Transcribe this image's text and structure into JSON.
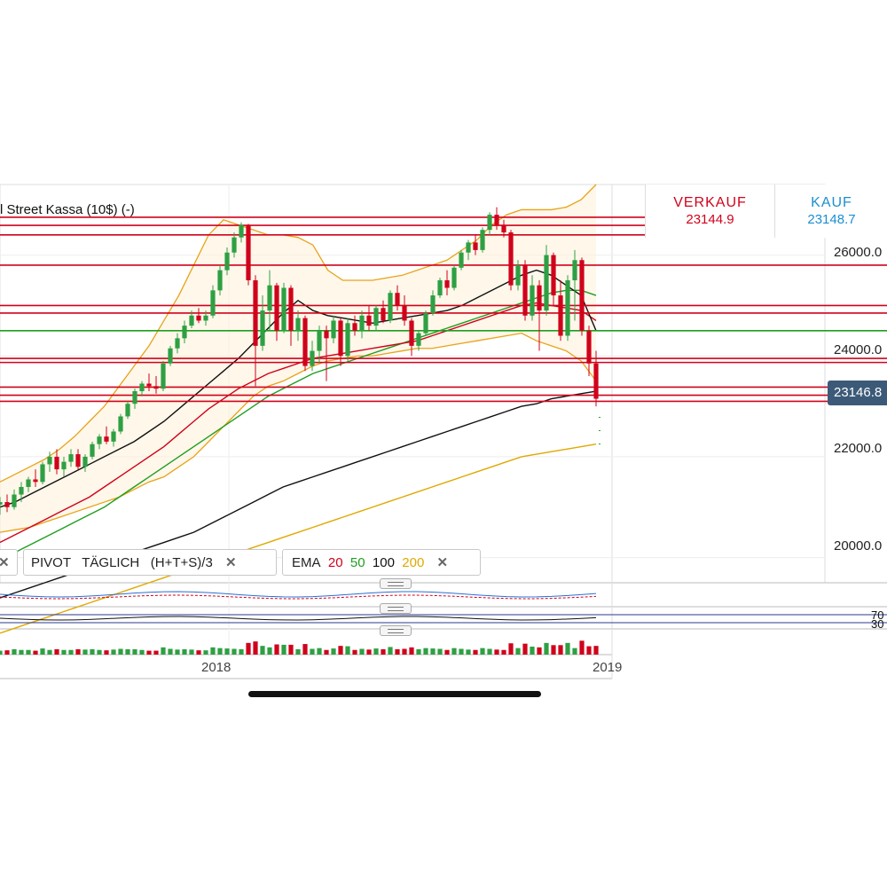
{
  "header": {
    "instrument": "l Street Kassa (10$) (-)",
    "sell_label": "VERKAUF",
    "sell_price": "23144.9",
    "buy_label": "KAUF",
    "buy_price": "23148.7"
  },
  "indicators": {
    "pivot_label": "PIVOT",
    "pivot_period": "TÄGLICH",
    "pivot_formula": "(H+T+S)/3",
    "ema_label": "EMA",
    "ema_periods": [
      "20",
      "50",
      "100",
      "200"
    ],
    "close_glyph": "✕"
  },
  "oscillator_labels": [
    "70",
    "30"
  ],
  "colors": {
    "bull": "#2ea043",
    "bear": "#d0021b",
    "ema20": "#d0021b",
    "ema50": "#1f9e1f",
    "ema100": "#111111",
    "ema200": "#e0a800",
    "bollinger": "#e8a317",
    "price_tag": "#3c5a78"
  },
  "chart_data": {
    "type": "candlestick",
    "x_ticks": [
      "2018",
      "2019"
    ],
    "y_ticks": [
      "26000.0",
      "24000.0",
      "22000.0",
      "20000.0"
    ],
    "ylim": [
      19500,
      27400
    ],
    "current_price": "23146.8",
    "horizontal_levels": [
      26750,
      26590,
      26400,
      25800,
      25000,
      24850,
      24500,
      23950,
      23870,
      23380,
      23220,
      23100
    ],
    "candles": [
      {
        "o": 21050,
        "h": 21200,
        "l": 20850,
        "c": 21100
      },
      {
        "o": 21100,
        "h": 21250,
        "l": 20900,
        "c": 21000
      },
      {
        "o": 21000,
        "h": 21350,
        "l": 20950,
        "c": 21250
      },
      {
        "o": 21250,
        "h": 21500,
        "l": 21100,
        "c": 21400
      },
      {
        "o": 21400,
        "h": 21600,
        "l": 21300,
        "c": 21550
      },
      {
        "o": 21550,
        "h": 21750,
        "l": 21400,
        "c": 21500
      },
      {
        "o": 21500,
        "h": 21900,
        "l": 21450,
        "c": 21850
      },
      {
        "o": 21850,
        "h": 22100,
        "l": 21700,
        "c": 22000
      },
      {
        "o": 22000,
        "h": 22150,
        "l": 21650,
        "c": 21750
      },
      {
        "o": 21750,
        "h": 22000,
        "l": 21600,
        "c": 21900
      },
      {
        "o": 21900,
        "h": 22150,
        "l": 21800,
        "c": 22050
      },
      {
        "o": 22050,
        "h": 22150,
        "l": 21750,
        "c": 21800
      },
      {
        "o": 21800,
        "h": 22050,
        "l": 21700,
        "c": 22000
      },
      {
        "o": 22000,
        "h": 22300,
        "l": 21950,
        "c": 22250
      },
      {
        "o": 22250,
        "h": 22450,
        "l": 22150,
        "c": 22400
      },
      {
        "o": 22400,
        "h": 22600,
        "l": 22250,
        "c": 22300
      },
      {
        "o": 22300,
        "h": 22550,
        "l": 22200,
        "c": 22500
      },
      {
        "o": 22500,
        "h": 22850,
        "l": 22450,
        "c": 22800
      },
      {
        "o": 22800,
        "h": 23100,
        "l": 22750,
        "c": 23050
      },
      {
        "o": 23050,
        "h": 23350,
        "l": 22950,
        "c": 23300
      },
      {
        "o": 23300,
        "h": 23500,
        "l": 23200,
        "c": 23450
      },
      {
        "o": 23450,
        "h": 23650,
        "l": 23300,
        "c": 23400
      },
      {
        "o": 23400,
        "h": 23600,
        "l": 23250,
        "c": 23350
      },
      {
        "o": 23350,
        "h": 23900,
        "l": 23300,
        "c": 23850
      },
      {
        "o": 23850,
        "h": 24200,
        "l": 23800,
        "c": 24150
      },
      {
        "o": 24150,
        "h": 24450,
        "l": 24050,
        "c": 24350
      },
      {
        "o": 24350,
        "h": 24700,
        "l": 24250,
        "c": 24600
      },
      {
        "o": 24600,
        "h": 24900,
        "l": 24550,
        "c": 24800
      },
      {
        "o": 24800,
        "h": 24950,
        "l": 24650,
        "c": 24700
      },
      {
        "o": 24700,
        "h": 24900,
        "l": 24600,
        "c": 24800
      },
      {
        "o": 24800,
        "h": 25400,
        "l": 24750,
        "c": 25300
      },
      {
        "o": 25300,
        "h": 25800,
        "l": 25200,
        "c": 25700
      },
      {
        "o": 25700,
        "h": 26150,
        "l": 25600,
        "c": 26050
      },
      {
        "o": 26050,
        "h": 26450,
        "l": 25950,
        "c": 26350
      },
      {
        "o": 26350,
        "h": 26650,
        "l": 26250,
        "c": 26600
      },
      {
        "o": 26600,
        "h": 26620,
        "l": 25400,
        "c": 25500
      },
      {
        "o": 25500,
        "h": 25600,
        "l": 23400,
        "c": 24200
      },
      {
        "o": 24200,
        "h": 25200,
        "l": 24100,
        "c": 24900
      },
      {
        "o": 24900,
        "h": 25700,
        "l": 24500,
        "c": 25400
      },
      {
        "o": 25400,
        "h": 25450,
        "l": 24300,
        "c": 24500
      },
      {
        "o": 24500,
        "h": 25450,
        "l": 24450,
        "c": 25350
      },
      {
        "o": 25350,
        "h": 25400,
        "l": 24200,
        "c": 24500
      },
      {
        "o": 24500,
        "h": 24900,
        "l": 24300,
        "c": 24750
      },
      {
        "o": 24750,
        "h": 24800,
        "l": 23700,
        "c": 23800
      },
      {
        "o": 23800,
        "h": 24300,
        "l": 23700,
        "c": 24100
      },
      {
        "o": 24100,
        "h": 24600,
        "l": 23850,
        "c": 24500
      },
      {
        "o": 24500,
        "h": 24600,
        "l": 23500,
        "c": 24350
      },
      {
        "o": 24350,
        "h": 24800,
        "l": 24250,
        "c": 24700
      },
      {
        "o": 24700,
        "h": 24750,
        "l": 23800,
        "c": 24000
      },
      {
        "o": 24000,
        "h": 24750,
        "l": 23900,
        "c": 24650
      },
      {
        "o": 24650,
        "h": 24800,
        "l": 24400,
        "c": 24500
      },
      {
        "o": 24500,
        "h": 24900,
        "l": 24350,
        "c": 24800
      },
      {
        "o": 24800,
        "h": 25000,
        "l": 24500,
        "c": 24600
      },
      {
        "o": 24600,
        "h": 25000,
        "l": 24500,
        "c": 24950
      },
      {
        "o": 24950,
        "h": 25100,
        "l": 24650,
        "c": 24700
      },
      {
        "o": 24700,
        "h": 25300,
        "l": 24650,
        "c": 25250
      },
      {
        "o": 25250,
        "h": 25400,
        "l": 24900,
        "c": 25000
      },
      {
        "o": 25000,
        "h": 25200,
        "l": 24600,
        "c": 24700
      },
      {
        "o": 24700,
        "h": 24750,
        "l": 24000,
        "c": 24200
      },
      {
        "o": 24200,
        "h": 24500,
        "l": 24100,
        "c": 24450
      },
      {
        "o": 24450,
        "h": 24900,
        "l": 24400,
        "c": 24850
      },
      {
        "o": 24850,
        "h": 25300,
        "l": 24800,
        "c": 25200
      },
      {
        "o": 25200,
        "h": 25550,
        "l": 25150,
        "c": 25500
      },
      {
        "o": 25500,
        "h": 25700,
        "l": 25200,
        "c": 25350
      },
      {
        "o": 25350,
        "h": 25800,
        "l": 25300,
        "c": 25750
      },
      {
        "o": 25750,
        "h": 26100,
        "l": 25700,
        "c": 26050
      },
      {
        "o": 26050,
        "h": 26300,
        "l": 25900,
        "c": 26250
      },
      {
        "o": 26250,
        "h": 26400,
        "l": 26000,
        "c": 26100
      },
      {
        "o": 26100,
        "h": 26550,
        "l": 26050,
        "c": 26500
      },
      {
        "o": 26500,
        "h": 26850,
        "l": 26400,
        "c": 26800
      },
      {
        "o": 26800,
        "h": 26950,
        "l": 26500,
        "c": 26600
      },
      {
        "o": 26600,
        "h": 26700,
        "l": 26350,
        "c": 26450
      },
      {
        "o": 26450,
        "h": 26500,
        "l": 25300,
        "c": 25400
      },
      {
        "o": 25400,
        "h": 25900,
        "l": 25300,
        "c": 25800
      },
      {
        "o": 25800,
        "h": 25900,
        "l": 24700,
        "c": 24800
      },
      {
        "o": 24800,
        "h": 25600,
        "l": 24700,
        "c": 25400
      },
      {
        "o": 25400,
        "h": 25500,
        "l": 24100,
        "c": 24900
      },
      {
        "o": 24900,
        "h": 26200,
        "l": 24800,
        "c": 26000
      },
      {
        "o": 26000,
        "h": 26050,
        "l": 25000,
        "c": 25200
      },
      {
        "o": 25200,
        "h": 25500,
        "l": 24300,
        "c": 24400
      },
      {
        "o": 24400,
        "h": 25600,
        "l": 24300,
        "c": 25500
      },
      {
        "o": 25500,
        "h": 26100,
        "l": 24700,
        "c": 25900
      },
      {
        "o": 25900,
        "h": 25950,
        "l": 24400,
        "c": 24500
      },
      {
        "o": 24500,
        "h": 24600,
        "l": 23600,
        "c": 23850
      },
      {
        "o": 23850,
        "h": 24100,
        "l": 23000,
        "c": 23150
      }
    ],
    "ema20": [
      21000,
      21100,
      21250,
      21400,
      21550,
      21700,
      21850,
      22000,
      22150,
      22300,
      22500,
      22700,
      22950,
      23200,
      23450,
      23700,
      23950,
      24250,
      24550,
      24850,
      25100,
      24900,
      24800,
      24750,
      24700,
      24650,
      24700,
      24750,
      24800,
      24850,
      24900,
      25000,
      25150,
      25300,
      25450,
      25600,
      25700,
      25600,
      25400,
      25200,
      24500
    ],
    "ema50": [
      20300,
      20450,
      20600,
      20750,
      20900,
      21050,
      21200,
      21400,
      21600,
      21800,
      22000,
      22200,
      22450,
      22700,
      22950,
      23150,
      23350,
      23500,
      23650,
      23750,
      23850,
      23950,
      24000,
      24050,
      24100,
      24150,
      24200,
      24250,
      24300,
      24400,
      24500,
      24600,
      24700,
      24800,
      24900,
      25000,
      25050,
      25000,
      24950,
      24900,
      24700
    ],
    "ema100": [
      20000,
      20100,
      20250,
      20400,
      20550,
      20700,
      20850,
      21000,
      21200,
      21400,
      21600,
      21800,
      22000,
      22200,
      22400,
      22600,
      22800,
      23000,
      23200,
      23350,
      23500,
      23650,
      23750,
      23850,
      23950,
      24050,
      24150,
      24250,
      24350,
      24450,
      24550,
      24650,
      24750,
      24850,
      24950,
      25050,
      25150,
      25250,
      25300,
      25300,
      25200
    ],
    "ema200": [
      19200,
      19300,
      19400,
      19500,
      19600,
      19700,
      19800,
      19900,
      20000,
      20100,
      20200,
      20300,
      20400,
      20500,
      20650,
      20800,
      20950,
      21100,
      21250,
      21400,
      21500,
      21600,
      21700,
      21800,
      21900,
      22000,
      22100,
      22200,
      22300,
      22400,
      22500,
      22600,
      22700,
      22800,
      22900,
      23000,
      23050,
      23150,
      23200,
      23250,
      23300
    ],
    "ema300": [
      18500,
      18600,
      18700,
      18800,
      18900,
      19000,
      19100,
      19200,
      19300,
      19400,
      19500,
      19600,
      19700,
      19800,
      19900,
      20000,
      20100,
      20200,
      20300,
      20400,
      20500,
      20600,
      20700,
      20800,
      20900,
      21000,
      21100,
      21200,
      21300,
      21400,
      21500,
      21600,
      21700,
      21800,
      21900,
      22000,
      22050,
      22100,
      22150,
      22200,
      22250
    ],
    "boll_upper": [
      21500,
      21650,
      21800,
      21950,
      22150,
      22400,
      22700,
      23000,
      23400,
      23800,
      24200,
      24700,
      25200,
      25800,
      26400,
      26700,
      26600,
      26500,
      26400,
      26400,
      26350,
      26200,
      25700,
      25500,
      25500,
      25500,
      25550,
      25600,
      25700,
      25800,
      25900,
      26100,
      26300,
      26600,
      26800,
      26900,
      26900,
      26900,
      26950,
      27100,
      27400
    ],
    "boll_lower": [
      20500,
      20550,
      20600,
      20700,
      20800,
      20900,
      21000,
      21100,
      21200,
      21350,
      21500,
      21600,
      21800,
      22000,
      22300,
      22600,
      22900,
      23200,
      23400,
      23500,
      23650,
      23800,
      23900,
      23950,
      24000,
      24000,
      24050,
      24100,
      24150,
      24150,
      24200,
      24250,
      24300,
      24350,
      24400,
      24450,
      24300,
      24200,
      24100,
      23900,
      23500
    ]
  }
}
